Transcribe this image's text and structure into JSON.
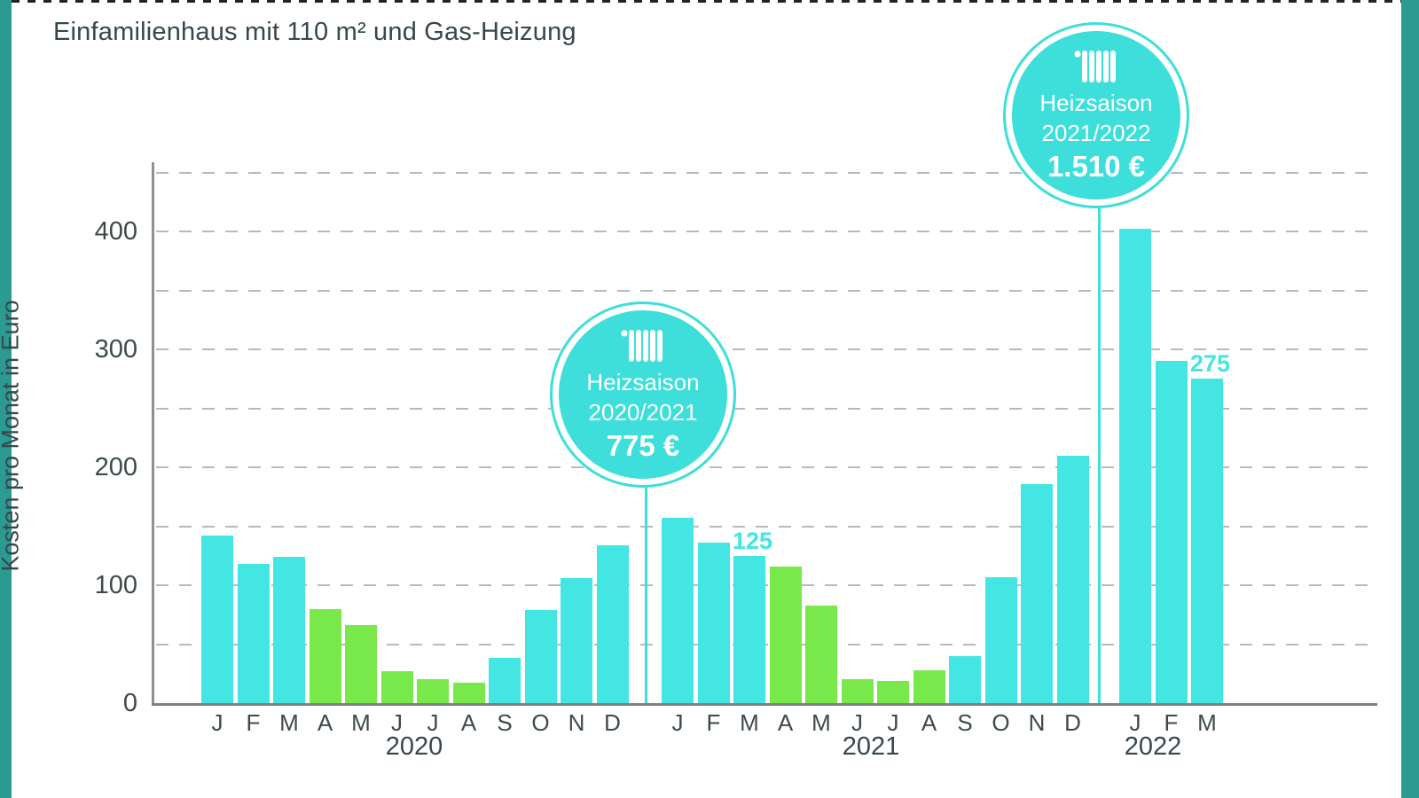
{
  "page": {
    "title": "Einfamilienhaus mit 110 m² und Gas-Heizung"
  },
  "colors": {
    "accent_teal": "#2B9A90",
    "bar_cyan": "#43E6E2",
    "bar_green": "#79E84B",
    "badge_fill": "#3EDEDB",
    "text_dark": "#37474C",
    "grid_gray": "#B5BBBB",
    "axis_gray": "#8C9292"
  },
  "chart_data": {
    "type": "bar",
    "title": "Einfamilienhaus mit 110 m² und Gas-Heizung",
    "xlabel": "",
    "ylabel": "Kosten pro Monat in Euro",
    "ylim": [
      0,
      450
    ],
    "ytick_values": [
      0,
      100,
      200,
      300,
      400
    ],
    "grid": "dashed, every 50",
    "unit": "Euro pro Monat",
    "groups": [
      {
        "year": "2020",
        "categories": [
          "J",
          "F",
          "M",
          "A",
          "M",
          "J",
          "J",
          "A",
          "S",
          "O",
          "N",
          "D"
        ],
        "values": [
          142,
          118,
          124,
          80,
          66,
          27,
          20,
          17,
          38,
          79,
          106,
          134
        ],
        "bar_colors": [
          "cyan",
          "cyan",
          "cyan",
          "green",
          "green",
          "green",
          "green",
          "green",
          "cyan",
          "cyan",
          "cyan",
          "cyan"
        ]
      },
      {
        "year": "2021",
        "categories": [
          "J",
          "F",
          "M",
          "A",
          "M",
          "J",
          "J",
          "A",
          "S",
          "O",
          "N",
          "D"
        ],
        "values": [
          157,
          136,
          125,
          116,
          83,
          20,
          19,
          28,
          40,
          107,
          186,
          210
        ],
        "bar_colors": [
          "cyan",
          "cyan",
          "cyan",
          "green",
          "green",
          "green",
          "green",
          "green",
          "cyan",
          "cyan",
          "cyan",
          "cyan"
        ]
      },
      {
        "year": "2022",
        "categories": [
          "J",
          "F",
          "M"
        ],
        "values": [
          402,
          290,
          275
        ],
        "bar_colors": [
          "cyan",
          "cyan",
          "cyan"
        ]
      }
    ],
    "bar_labels": [
      {
        "text": "125",
        "group": 1,
        "index": 2
      },
      {
        "text": "275",
        "group": 2,
        "index": 2
      }
    ],
    "annotations": [
      {
        "icon": "radiator-icon",
        "line1": "Heizsaison",
        "line2": "2020/2021",
        "amount": "775 €"
      },
      {
        "icon": "radiator-icon",
        "line1": "Heizsaison",
        "line2": "2021/2022",
        "amount": "1.510 €"
      }
    ]
  }
}
